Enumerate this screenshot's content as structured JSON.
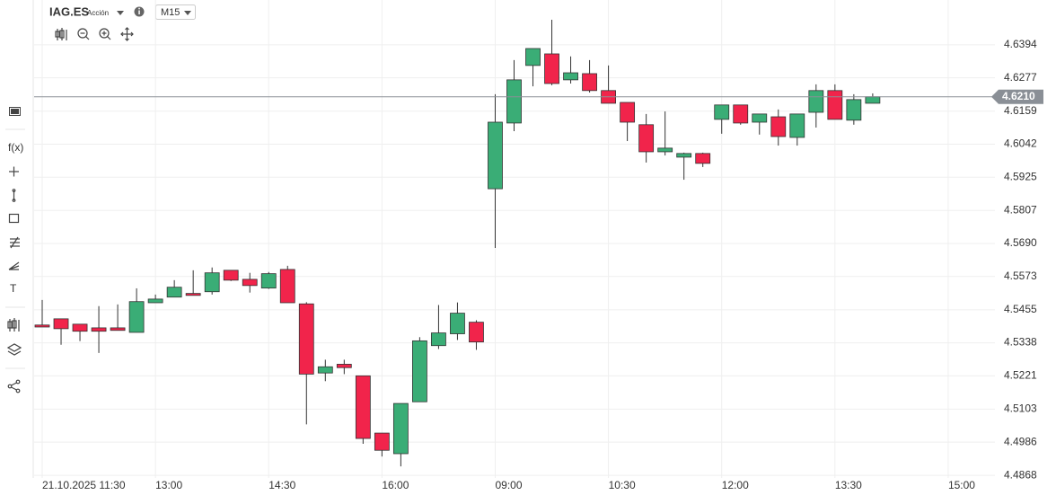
{
  "header": {
    "symbol": "IAG.ES",
    "instrument_type": "Acción",
    "timeframe": "M15"
  },
  "toolbar": {
    "function_label": "f(x)",
    "text_tool_label": "T"
  },
  "chart_data": {
    "type": "candlestick",
    "categories": [
      "21.10.2025 11:30",
      null,
      null,
      null,
      null,
      null,
      "13:00",
      null,
      null,
      null,
      null,
      null,
      "14:30",
      null,
      null,
      null,
      null,
      null,
      "16:00",
      null,
      null,
      null,
      null,
      null,
      "09:00",
      null,
      null,
      null,
      null,
      null,
      "10:30",
      null,
      null,
      null,
      null,
      null,
      "12:00",
      null,
      null,
      null,
      null,
      null,
      "13:30",
      null,
      null,
      null,
      null,
      null,
      "15:00"
    ],
    "open": [
      4.5401,
      4.5423,
      4.5404,
      4.5391,
      4.5391,
      4.5375,
      4.548,
      4.55,
      4.5513,
      4.5519,
      4.5595,
      4.5563,
      4.5532,
      4.5598,
      4.5476,
      4.5231,
      4.5262,
      4.5221,
      4.5018,
      4.4945,
      4.5129,
      4.5328,
      4.537,
      4.5411,
      4.5884,
      4.6117,
      4.6321,
      4.6362,
      4.627,
      4.6292,
      4.6232,
      4.619,
      4.6111,
      4.6015,
      4.5996,
      4.6009,
      4.613,
      4.6181,
      4.612,
      4.6139,
      4.6066,
      4.6155,
      4.6232,
      4.6127,
      4.6187,
      null,
      null,
      null,
      null
    ],
    "high": [
      4.549,
      4.5423,
      4.5404,
      4.5468,
      4.5474,
      4.5531,
      4.5509,
      4.556,
      4.5595,
      4.5605,
      4.5595,
      4.5586,
      4.5589,
      4.5611,
      4.5482,
      4.5278,
      4.5278,
      4.5221,
      4.5018,
      4.5123,
      4.5358,
      4.5472,
      4.5481,
      4.5418,
      4.6219,
      4.634,
      4.6381,
      4.6483,
      4.6353,
      4.634,
      4.6321,
      4.619,
      4.6149,
      4.6158,
      4.6012,
      4.6012,
      4.6181,
      4.6181,
      4.6149,
      4.6165,
      4.6149,
      4.6254,
      4.6254,
      4.6219,
      4.6222,
      null,
      null,
      null,
      null
    ],
    "low": [
      4.5394,
      4.5331,
      4.5344,
      4.5302,
      4.5382,
      4.5375,
      4.548,
      4.55,
      4.5506,
      4.5509,
      4.5557,
      4.5516,
      4.5529,
      4.548,
      4.5049,
      4.5202,
      4.5227,
      4.498,
      4.4935,
      4.49,
      4.5129,
      4.5316,
      4.5348,
      4.5313,
      4.5674,
      4.6088,
      4.6247,
      4.6251,
      4.6257,
      4.6225,
      4.6187,
      4.6053,
      4.5977,
      4.6002,
      4.5916,
      4.5961,
      4.6079,
      4.6111,
      4.6076,
      4.6037,
      4.6037,
      4.6101,
      4.613,
      4.6111,
      4.6187,
      null,
      null,
      null,
      null
    ],
    "close": [
      4.5394,
      4.5388,
      4.5379,
      4.5379,
      4.5382,
      4.5484,
      4.5493,
      4.5535,
      4.5506,
      4.5586,
      4.556,
      4.5541,
      4.5583,
      4.548,
      4.5227,
      4.5253,
      4.525,
      4.4999,
      4.4957,
      4.5123,
      4.5345,
      4.5373,
      4.5443,
      4.5341,
      4.612,
      4.627,
      4.6381,
      4.6257,
      4.6295,
      4.6232,
      4.6187,
      4.612,
      4.6015,
      4.6028,
      4.6009,
      4.5974,
      4.6181,
      4.6117,
      4.6149,
      4.6069,
      4.6149,
      4.6232,
      4.613,
      4.62,
      4.621,
      null,
      null,
      null,
      null
    ],
    "up_color": "#3aad76",
    "down_color": "#f1244b",
    "ylim": [
      4.4859,
      4.6553
    ],
    "yticks": [
      4.6394,
      4.6277,
      4.6159,
      4.6042,
      4.5925,
      4.5807,
      {
        "value": 4.569,
        "label": "4.5690"
      },
      4.5573,
      4.5455,
      4.5338,
      4.5221,
      4.5103,
      4.4986,
      4.4868
    ],
    "current_price": {
      "value": 4.621,
      "label": "4.6210"
    },
    "grid": true
  }
}
